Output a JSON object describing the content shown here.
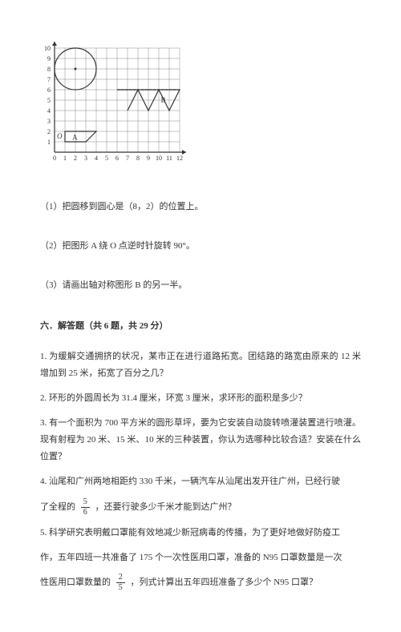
{
  "grid": {
    "type": "diagram",
    "width": 180,
    "height": 160,
    "x_ticks": [
      "0",
      "1",
      "2",
      "3",
      "4",
      "5",
      "6",
      "7",
      "8",
      "9",
      "10",
      "11",
      "12"
    ],
    "y_ticks": [
      "0",
      "1",
      "2",
      "3",
      "4",
      "5",
      "6",
      "7",
      "8",
      "9",
      "10"
    ],
    "axis_color": "#333333",
    "grid_color": "#888888",
    "cell": 13,
    "origin_x": 18,
    "origin_y": 150,
    "y_max_cells": 10,
    "x_max_cells": 12,
    "circle": {
      "cx_cell": 2,
      "cy_cell": 8,
      "r_cells": 2,
      "stroke": "#333333"
    },
    "origin_label": "O",
    "label_A": "A",
    "label_B": "B",
    "shape_A_points_cells": [
      [
        1,
        2
      ],
      [
        4,
        2
      ],
      [
        3,
        1
      ],
      [
        1,
        1
      ]
    ],
    "shape_B_points_cells": [
      [
        6,
        6
      ],
      [
        12,
        6
      ],
      [
        11,
        4
      ],
      [
        10,
        6
      ],
      [
        9,
        4
      ],
      [
        8,
        6
      ],
      [
        7,
        4
      ]
    ],
    "dashed_axis_line": {
      "x1_cell": 6,
      "x2_cell": 12,
      "y_cell": 6
    },
    "tick_font_size": 8,
    "stroke_width": 1
  },
  "questions": {
    "q1": "（1）把圆移到圆心是（8，2）的位置上。",
    "q2": "（2）把图形 A 绕 O 点逆时针旋转 90°。",
    "q3": "（3）请画出轴对称图形 B 的另一半。"
  },
  "section": {
    "heading": "六．解答题（共 6 题，共 29 分）"
  },
  "problems": {
    "p1": "1. 为缓解交通拥挤的状况，某市正在进行道路拓宽。团结路的路宽由原来的 12 米增加到 25 米，拓宽了百分之几？",
    "p2": "2. 环形的外圆周长为 31.4 厘米，环宽 3 厘米，求环形的面积是多少？",
    "p3": "3. 有一个面积为 700 平方米的圆形草坪，要为它安装自动旋转喷灌装置进行喷灌。现有射程为 20 米、15 米、10 米的三种装置，你认为选哪种比较合适？安装在什么位置？",
    "p4a": "4. 汕尾和广州两地相距约 330 千米，一辆汽车从汕尾出发开往广州，已经行驶",
    "p4b": "了全程的",
    "p4c": "，还要行驶多少千米才能到达广州？",
    "frac1": {
      "num": "5",
      "den": "6"
    },
    "p5a": "5. 科学研究表明戴口罩能有效地减少新冠病毒的传播，为了更好地做好防疫工",
    "p5b": "作，五年四班一共准备了 175 个一次性医用口罩，准备的 N95 口罩数量是一次",
    "p5c": "性医用口罩数量的",
    "p5d": "，列式计算出五年四班准备了多少个 N95 口罩？",
    "frac2": {
      "num": "2",
      "den": "5"
    }
  }
}
